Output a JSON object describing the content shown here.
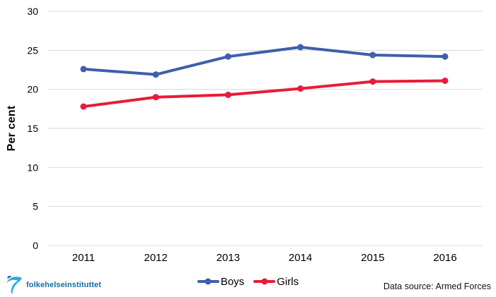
{
  "chart_data": {
    "type": "line",
    "title": "",
    "xlabel": "",
    "ylabel": "Per cent",
    "categories": [
      "2011",
      "2012",
      "2013",
      "2014",
      "2015",
      "2016"
    ],
    "series": [
      {
        "name": "Boys",
        "color": "#3e5fac",
        "values": [
          22.6,
          21.9,
          24.2,
          25.4,
          24.4,
          24.2
        ]
      },
      {
        "name": "Girls",
        "color": "#e81b38",
        "values": [
          17.8,
          19.0,
          19.3,
          20.1,
          21.0,
          21.1
        ]
      }
    ],
    "ylim": [
      0,
      30
    ],
    "yticks": [
      30,
      25,
      20,
      15,
      10,
      5,
      0
    ],
    "grid": true,
    "legend_position": "bottom-center"
  },
  "footer": {
    "logo_text": "folkehelseinstituttet",
    "data_source": "Data source: Armed Forces"
  },
  "colors": {
    "grid": "#d9d9d9",
    "axis_text": "#000000",
    "logo_blue": "#2fa9dd",
    "logo_dark_blue": "#16629e",
    "logo_text": "#156f9f"
  }
}
